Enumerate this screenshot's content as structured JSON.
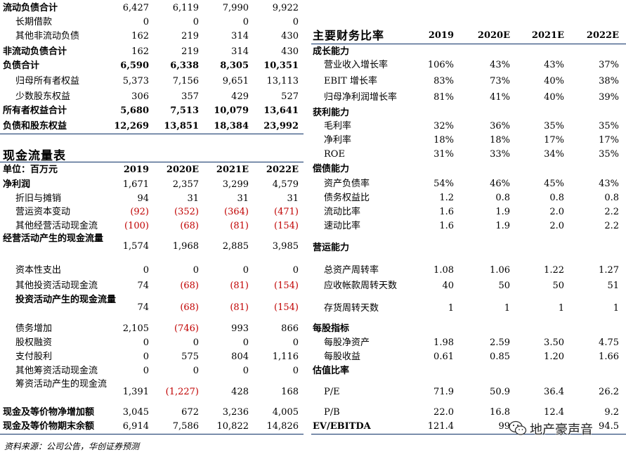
{
  "balance_sheet_continued": {
    "rows": [
      {
        "label": "流动负债合计",
        "values": [
          "6,427",
          "6,119",
          "7,990",
          "9,922"
        ],
        "bold": true
      },
      {
        "label": "长期借款",
        "values": [
          "0",
          "0",
          "0",
          "0"
        ],
        "indent": true
      },
      {
        "label": "其他非流动负债",
        "values": [
          "162",
          "219",
          "314",
          "430"
        ],
        "indent": true
      },
      {
        "label": "非流动负债合计",
        "values": [
          "162",
          "219",
          "314",
          "430"
        ],
        "bold": true
      },
      {
        "label": "负债合计",
        "values": [
          "6,590",
          "6,338",
          "8,305",
          "10,351"
        ],
        "bold": true,
        "bold_values": true
      },
      {
        "label": "归母所有者权益",
        "values": [
          "5,373",
          "7,156",
          "9,651",
          "13,113"
        ],
        "indent": true
      },
      {
        "label": "少数股东权益",
        "values": [
          "306",
          "357",
          "429",
          "527"
        ],
        "indent": true
      },
      {
        "label": "所有者权益合计",
        "values": [
          "5,680",
          "7,513",
          "10,079",
          "13,641"
        ],
        "bold": true,
        "bold_values": true
      },
      {
        "label": "负债和股东权益",
        "values": [
          "12,269",
          "13,851",
          "18,384",
          "23,992"
        ],
        "bold": true,
        "bold_values": true
      }
    ]
  },
  "cash_flow": {
    "title": "现金流量表",
    "header": {
      "label": "单位：百万元",
      "years": [
        "2019",
        "2020E",
        "2021E",
        "2022E"
      ]
    },
    "rows": [
      {
        "label": "净利润",
        "values": [
          "1,671",
          "2,357",
          "3,299",
          "4,579"
        ],
        "bold": true
      },
      {
        "label": "折旧与摊销",
        "values": [
          "94",
          "31",
          "31",
          "31"
        ],
        "indent": true
      },
      {
        "label": "营运资本变动",
        "values": [
          "(92)",
          "(352)",
          "(364)",
          "(471)"
        ],
        "indent": true
      },
      {
        "label": "其他经营活动现金流",
        "values": [
          "(100)",
          "(68)",
          "(81)",
          "(154)"
        ],
        "indent": true
      },
      {
        "label": "经营活动产生的现金流量",
        "values": [
          "1,574",
          "1,968",
          "2,885",
          "3,985"
        ],
        "bold": true,
        "multiline": true
      },
      {
        "label": "资本性支出",
        "values": [
          "0",
          "0",
          "0",
          "0"
        ],
        "indent": true
      },
      {
        "label": "其他投资活动现金流",
        "values": [
          "74",
          "(68)",
          "(81)",
          "(154)"
        ],
        "indent": true
      },
      {
        "label": "投资活动产生的现金流量",
        "values": [
          "74",
          "(68)",
          "(81)",
          "(154)"
        ],
        "bold": true,
        "multiline": true,
        "mixed": true
      },
      {
        "label": "债务增加",
        "values": [
          "2,105",
          "(746)",
          "993",
          "866"
        ],
        "indent": true
      },
      {
        "label": "股权融资",
        "values": [
          "0",
          "0",
          "0",
          "0"
        ],
        "indent": true
      },
      {
        "label": "支付股利",
        "values": [
          "0",
          "575",
          "804",
          "1,116"
        ],
        "indent": true
      },
      {
        "label": "其他筹资活动现金流",
        "values": [
          "0",
          "0",
          "0",
          "0"
        ],
        "indent": true
      },
      {
        "label": "筹资活动产生的现金流",
        "values": [
          "1,391",
          "(1,227)",
          "428",
          "168"
        ],
        "indent": true,
        "multiline": true
      },
      {
        "label": "现金及等价物净增加额",
        "values": [
          "3,045",
          "672",
          "3,236",
          "4,005"
        ],
        "bold": true
      },
      {
        "label": "现金及等价物期末余额",
        "values": [
          "6,914",
          "7,586",
          "10,822",
          "14,826"
        ],
        "bold": true
      }
    ]
  },
  "ratios": {
    "title": "主要财务比率",
    "years": [
      "2019",
      "2020E",
      "2021E",
      "2022E"
    ],
    "rows": [
      {
        "label": "成长能力",
        "section": true
      },
      {
        "label": "营业收入增长率",
        "values": [
          "106%",
          "43%",
          "43%",
          "37%"
        ]
      },
      {
        "label": "EBIT 增长率",
        "values": [
          "83%",
          "73%",
          "40%",
          "38%"
        ]
      },
      {
        "label": "归母净利润增长率",
        "values": [
          "81%",
          "41%",
          "40%",
          "39%"
        ]
      },
      {
        "label": "获利能力",
        "section": true
      },
      {
        "label": "毛利率",
        "values": [
          "32%",
          "36%",
          "35%",
          "35%"
        ]
      },
      {
        "label": "净利率",
        "values": [
          "18%",
          "18%",
          "17%",
          "17%"
        ]
      },
      {
        "label": "ROE",
        "values": [
          "31%",
          "33%",
          "34%",
          "35%"
        ]
      },
      {
        "label": "偿债能力",
        "section": true
      },
      {
        "label": "资产负债率",
        "values": [
          "54%",
          "46%",
          "45%",
          "43%"
        ]
      },
      {
        "label": "债务权益比",
        "values": [
          "1.2",
          "0.8",
          "0.8",
          "0.8"
        ]
      },
      {
        "label": "流动比率",
        "values": [
          "1.6",
          "1.9",
          "2.0",
          "2.2"
        ]
      },
      {
        "label": "速动比率",
        "values": [
          "1.6",
          "1.9",
          "2.0",
          "2.2"
        ]
      },
      {
        "label": "营运能力",
        "section": true
      },
      {
        "label": "总资产周转率",
        "values": [
          "1.08",
          "1.06",
          "1.22",
          "1.27"
        ]
      },
      {
        "label": "应收帐款周转天数",
        "values": [
          "40",
          "50",
          "50",
          "51"
        ]
      },
      {
        "label": "存货周转天数",
        "values": [
          "1",
          "1",
          "1",
          "1"
        ]
      },
      {
        "label": "每股指标",
        "section": true
      },
      {
        "label": "每股净资产",
        "values": [
          "1.98",
          "2.59",
          "3.50",
          "4.75"
        ]
      },
      {
        "label": "每股收益",
        "values": [
          "0.61",
          "0.85",
          "1.20",
          "1.66"
        ]
      },
      {
        "label": "估值比率",
        "section": true
      },
      {
        "label": "P/E",
        "values": [
          "71.9",
          "50.9",
          "36.4",
          "26.2"
        ]
      },
      {
        "label": "P/B",
        "values": [
          "22.0",
          "16.8",
          "12.4",
          "9.2"
        ]
      },
      {
        "label": "EV/EBITDA",
        "values": [
          "121.4",
          "99",
          "",
          "94.5"
        ],
        "bold": true
      }
    ]
  },
  "source": "资料来源：公司公告，华创证券预测",
  "watermark": "地产豪声音",
  "colors": {
    "rule": "#0b2f66",
    "negative": "#c00000"
  }
}
